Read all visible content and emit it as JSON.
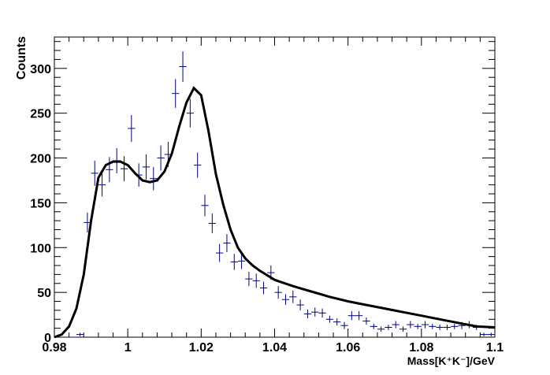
{
  "chart_data": {
    "type": "scatter",
    "xlabel": "Mass[K⁺K⁻]/GeV",
    "ylabel": "Counts",
    "xlim": [
      0.98,
      1.1
    ],
    "ylim": [
      0,
      335
    ],
    "x_ticks": [
      0.98,
      1.0,
      1.02,
      1.04,
      1.06,
      1.08,
      1.1
    ],
    "x_tick_labels": [
      "0.98",
      "1",
      "1.02",
      "1.04",
      "1.06",
      "1.08",
      "1.1"
    ],
    "y_ticks": [
      0,
      50,
      100,
      150,
      200,
      250,
      300
    ],
    "y_tick_labels": [
      "0",
      "50",
      "100",
      "150",
      "200",
      "250",
      "300"
    ],
    "grid": false,
    "legend": "none",
    "bin_half_width": 0.001,
    "colors": {
      "data": "#000080",
      "fit": "#000000"
    },
    "series": [
      {
        "kind": "data-points-with-errors",
        "x": [
          0.985,
          0.987,
          0.989,
          0.991,
          0.993,
          0.995,
          0.997,
          0.999,
          1.001,
          1.003,
          1.005,
          1.007,
          1.009,
          1.011,
          1.013,
          1.015,
          1.017,
          1.019,
          1.021,
          1.023,
          1.025,
          1.027,
          1.029,
          1.031,
          1.033,
          1.035,
          1.037,
          1.039,
          1.041,
          1.043,
          1.045,
          1.047,
          1.049,
          1.051,
          1.053,
          1.055,
          1.057,
          1.059,
          1.061,
          1.063,
          1.065,
          1.067,
          1.069,
          1.071,
          1.073,
          1.075,
          1.077,
          1.079,
          1.081,
          1.083,
          1.085,
          1.087,
          1.089,
          1.091,
          1.093,
          1.095,
          1.097,
          1.099
        ],
        "y": [
          0,
          3,
          128,
          183,
          170,
          187,
          197,
          188,
          233,
          181,
          190,
          177,
          200,
          204,
          272,
          302,
          250,
          192,
          147,
          127,
          94,
          105,
          84,
          85,
          65,
          63,
          55,
          72,
          50,
          42,
          45,
          36,
          26,
          28,
          27,
          20,
          17,
          13,
          24,
          24,
          18,
          12,
          9,
          11,
          14,
          9,
          14,
          12,
          14,
          12,
          11,
          11,
          12,
          13,
          14,
          11,
          3,
          3
        ],
        "yerr": [
          0,
          2,
          11,
          14,
          13,
          14,
          14,
          14,
          15,
          13,
          14,
          13,
          14,
          14,
          16,
          17,
          16,
          14,
          12,
          11,
          10,
          10,
          9,
          9,
          8,
          8,
          7,
          8,
          7,
          6,
          7,
          6,
          5,
          5,
          5,
          4,
          4,
          4,
          5,
          5,
          4,
          3,
          3,
          3,
          4,
          3,
          4,
          3,
          4,
          3,
          3,
          3,
          3,
          4,
          4,
          3,
          2,
          2
        ]
      },
      {
        "kind": "fit-curve",
        "x": [
          0.98,
          0.982,
          0.984,
          0.986,
          0.988,
          0.99,
          0.992,
          0.994,
          0.996,
          0.998,
          1.0,
          1.002,
          1.004,
          1.006,
          1.008,
          1.01,
          1.012,
          1.014,
          1.016,
          1.018,
          1.02,
          1.022,
          1.024,
          1.026,
          1.028,
          1.03,
          1.032,
          1.034,
          1.036,
          1.038,
          1.04,
          1.045,
          1.05,
          1.055,
          1.06,
          1.065,
          1.07,
          1.075,
          1.08,
          1.085,
          1.09,
          1.095,
          1.1
        ],
        "y": [
          0,
          3,
          12,
          32,
          70,
          130,
          178,
          192,
          196,
          196,
          192,
          183,
          175,
          173,
          175,
          185,
          205,
          235,
          262,
          278,
          270,
          230,
          182,
          148,
          120,
          100,
          88,
          80,
          74,
          69,
          64,
          57,
          51,
          45,
          40,
          36,
          32,
          28,
          24,
          20,
          16,
          12,
          11
        ]
      }
    ]
  }
}
